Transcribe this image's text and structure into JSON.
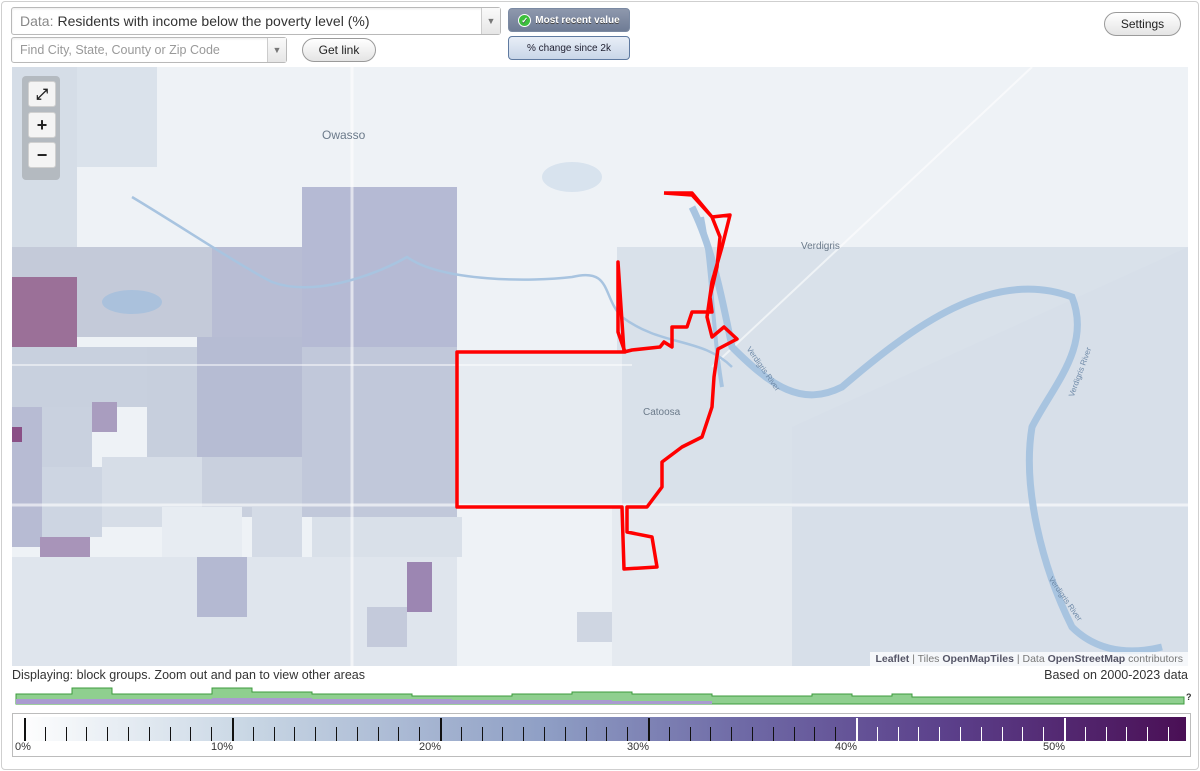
{
  "controls": {
    "data_prefix": "Data:",
    "data_value": "Residents with income below the poverty level (%)",
    "search_placeholder": "Find City, State, County or Zip Code",
    "get_link": "Get link",
    "toggle_recent": "Most recent value",
    "toggle_change": "% change since 2k",
    "settings": "Settings"
  },
  "map": {
    "places": [
      "Owasso",
      "Verdigris",
      "Catoosa"
    ],
    "rivers": [
      "Verdigris River",
      "Verdigris River",
      "Verdigris River"
    ],
    "zoom": {
      "fit": "⤢",
      "in": "+",
      "out": "−"
    },
    "attribution": {
      "leaflet": "Leaflet",
      "sep1": " | Tiles ",
      "tiles": "OpenMapTiles",
      "sep2": " | Data ",
      "data": "OpenStreetMap",
      "tail": " contributors"
    },
    "highlight_color": "#ff0000"
  },
  "caption": {
    "displaying": "Displaying: block groups. Zoom out and pan to view other areas",
    "based_on": "Based on 2000-2023 data",
    "histogram_end": "?"
  },
  "legend": {
    "labels": [
      "0%",
      "10%",
      "20%",
      "30%",
      "40%",
      "50%"
    ]
  }
}
